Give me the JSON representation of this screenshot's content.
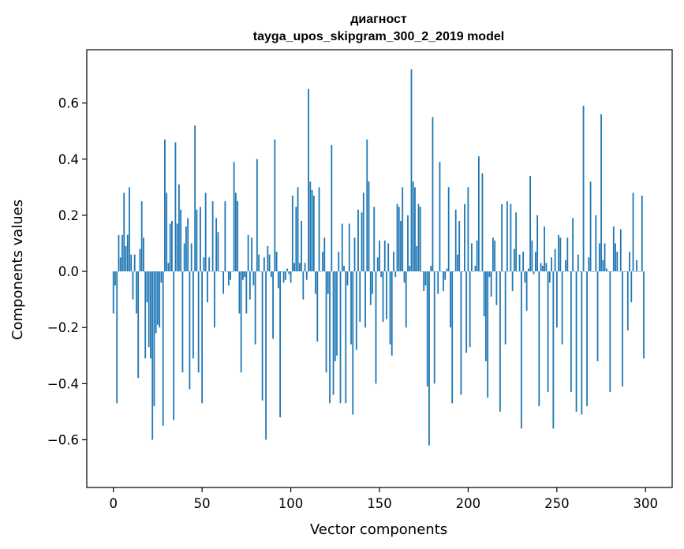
{
  "chart_data": {
    "type": "bar",
    "title": "диагност",
    "subtitle": "tayga_upos_skipgram_300_2_2019 model",
    "xlabel": "Vector components",
    "ylabel": "Components values",
    "xlim": [
      -15,
      315
    ],
    "ylim": [
      -0.77,
      0.79
    ],
    "xticks": [
      0,
      50,
      100,
      150,
      200,
      250,
      300
    ],
    "xtick_labels": [
      "0",
      "50",
      "100",
      "150",
      "200",
      "250",
      "300"
    ],
    "yticks": [
      -0.6,
      -0.4,
      -0.2,
      0.0,
      0.2,
      0.4,
      0.6
    ],
    "ytick_labels": [
      "−0.6",
      "−0.4",
      "−0.2",
      "0.0",
      "0.2",
      "0.4",
      "0.6"
    ],
    "bar_color": "#1f77b4",
    "grid": false,
    "legend": "none",
    "x": "indices 0..299",
    "values": [
      -0.15,
      -0.05,
      -0.47,
      0.13,
      0.05,
      0.13,
      0.28,
      0.09,
      0.13,
      0.3,
      0.06,
      -0.1,
      0.06,
      -0.15,
      -0.38,
      0.08,
      0.25,
      0.12,
      -0.31,
      -0.11,
      -0.27,
      -0.31,
      -0.6,
      -0.48,
      -0.22,
      -0.19,
      -0.2,
      -0.04,
      -0.55,
      0.47,
      0.28,
      0.03,
      0.17,
      0.18,
      -0.53,
      0.46,
      0.17,
      0.31,
      0.22,
      -0.36,
      0.1,
      0.16,
      0.19,
      -0.42,
      0.1,
      -0.31,
      0.52,
      0.22,
      -0.36,
      0.23,
      -0.47,
      0.05,
      0.28,
      -0.11,
      0.05,
      0.0,
      0.25,
      -0.2,
      0.19,
      0.14,
      0.0,
      0.0,
      -0.08,
      0.25,
      0.0,
      -0.05,
      -0.03,
      0.0,
      0.39,
      0.28,
      0.25,
      -0.15,
      -0.36,
      -0.03,
      -0.02,
      -0.15,
      0.13,
      -0.1,
      0.12,
      -0.05,
      -0.26,
      0.4,
      0.06,
      0.0,
      -0.46,
      0.05,
      -0.6,
      0.09,
      0.06,
      -0.02,
      -0.24,
      0.47,
      0.07,
      -0.06,
      -0.52,
      0.0,
      -0.04,
      -0.03,
      0.01,
      -0.01,
      -0.04,
      0.27,
      0.03,
      0.23,
      0.3,
      0.03,
      0.18,
      -0.1,
      0.03,
      -0.03,
      0.65,
      0.32,
      0.29,
      0.27,
      -0.08,
      -0.25,
      0.3,
      0.0,
      0.07,
      0.12,
      -0.36,
      -0.08,
      -0.47,
      0.45,
      -0.44,
      -0.32,
      -0.3,
      0.07,
      -0.47,
      0.17,
      0.02,
      -0.47,
      -0.05,
      0.17,
      -0.26,
      -0.51,
      0.12,
      -0.28,
      0.22,
      -0.18,
      0.21,
      0.28,
      -0.2,
      0.47,
      0.32,
      -0.12,
      -0.08,
      0.23,
      -0.4,
      0.05,
      0.11,
      -0.02,
      -0.18,
      0.11,
      -0.17,
      0.1,
      -0.26,
      -0.3,
      0.07,
      -0.02,
      0.24,
      0.23,
      0.18,
      0.3,
      -0.04,
      -0.2,
      0.2,
      0.02,
      0.72,
      0.32,
      0.3,
      0.09,
      0.24,
      0.23,
      0.0,
      -0.07,
      -0.05,
      -0.41,
      -0.62,
      0.02,
      0.55,
      -0.4,
      0.0,
      -0.08,
      0.39,
      0.0,
      -0.07,
      -0.03,
      0.01,
      0.3,
      -0.2,
      -0.47,
      0.0,
      0.22,
      0.06,
      0.18,
      -0.44,
      0.0,
      0.24,
      -0.29,
      0.3,
      -0.27,
      0.1,
      0.0,
      0.02,
      0.11,
      0.41,
      0.0,
      0.35,
      -0.16,
      -0.32,
      -0.45,
      -0.02,
      -0.09,
      0.12,
      0.11,
      -0.12,
      0.0,
      -0.5,
      0.24,
      0.0,
      -0.26,
      0.25,
      0.0,
      0.24,
      -0.07,
      0.08,
      0.21,
      0.0,
      0.06,
      -0.56,
      0.07,
      -0.04,
      -0.14,
      0.01,
      0.34,
      0.11,
      -0.01,
      0.07,
      0.2,
      -0.48,
      0.03,
      0.02,
      0.16,
      0.03,
      -0.43,
      -0.04,
      0.05,
      -0.56,
      0.08,
      -0.2,
      0.13,
      0.12,
      -0.26,
      0.0,
      0.04,
      0.12,
      0.0,
      -0.43,
      0.19,
      0.0,
      -0.5,
      0.06,
      0.0,
      -0.51,
      0.59,
      0.0,
      -0.48,
      0.05,
      0.32,
      0.0,
      0.0,
      0.2,
      -0.32,
      0.1,
      0.56,
      0.04,
      0.1,
      0.01,
      0.0,
      -0.43,
      0.0,
      0.16,
      0.1,
      0.07,
      0.0,
      0.15,
      -0.41,
      0.0,
      0.0,
      -0.21,
      0.07,
      -0.11,
      0.28,
      0.0,
      0.04,
      0.0,
      0.0,
      0.27,
      -0.31
    ]
  }
}
